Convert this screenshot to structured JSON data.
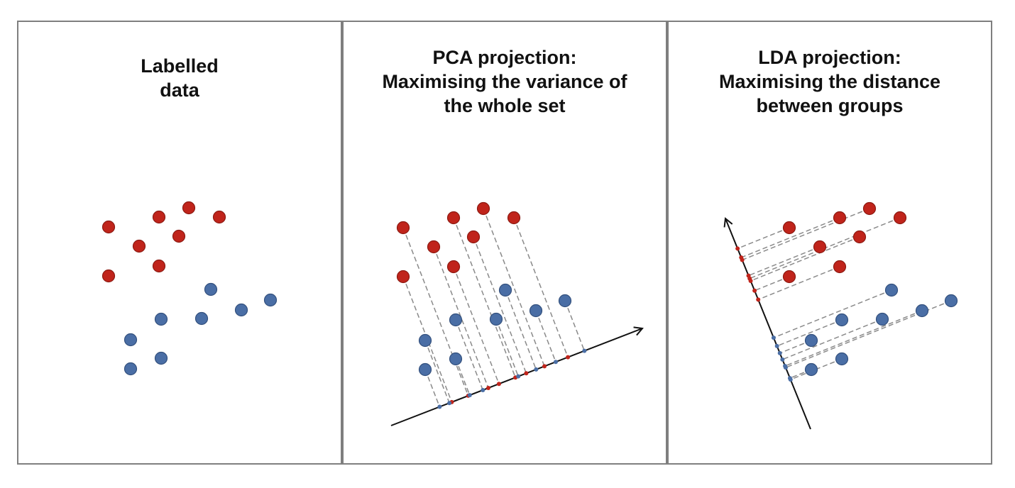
{
  "panels": [
    {
      "title_lines": [
        "Labelled",
        "data"
      ]
    },
    {
      "title_lines": [
        "PCA projection:",
        "Maximising the variance of",
        "the whole set"
      ]
    },
    {
      "title_lines": [
        "LDA projection:",
        "Maximising the distance",
        "between groups"
      ]
    }
  ],
  "colors": {
    "red": "#c0241b",
    "red_stroke": "#8c1a12",
    "blue": "#4a6ea5",
    "blue_stroke": "#33507d",
    "border": "#7f7f7f",
    "dash": "#8a8a8a",
    "axis": "#111111"
  }
}
